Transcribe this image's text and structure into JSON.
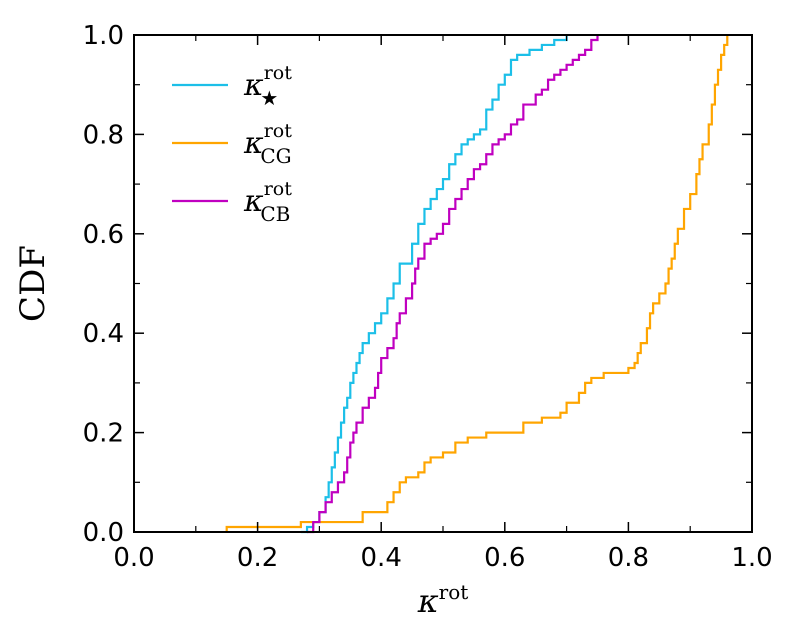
{
  "chart_data": {
    "type": "line",
    "title": "",
    "xlabel": {
      "base": "κ",
      "sup": "rot"
    },
    "ylabel": "CDF",
    "xlim": [
      0.0,
      1.0
    ],
    "ylim": [
      0.0,
      1.0
    ],
    "x_ticks": [
      "0.0",
      "0.2",
      "0.4",
      "0.6",
      "0.8",
      "1.0"
    ],
    "y_ticks": [
      "0.0",
      "0.2",
      "0.4",
      "0.6",
      "0.8",
      "1.0"
    ],
    "grid": false,
    "legend_position": "upper-left",
    "series": [
      {
        "name": "κ★rot",
        "label": {
          "base": "κ",
          "sup": "rot",
          "sub": "★"
        },
        "color": "#1cbfe8",
        "step": true,
        "points": [
          [
            0.27,
            0.0
          ],
          [
            0.28,
            0.01
          ],
          [
            0.29,
            0.02
          ],
          [
            0.3,
            0.04
          ],
          [
            0.31,
            0.07
          ],
          [
            0.315,
            0.1
          ],
          [
            0.32,
            0.13
          ],
          [
            0.325,
            0.16
          ],
          [
            0.33,
            0.19
          ],
          [
            0.335,
            0.22
          ],
          [
            0.34,
            0.25
          ],
          [
            0.345,
            0.27
          ],
          [
            0.35,
            0.3
          ],
          [
            0.355,
            0.32
          ],
          [
            0.36,
            0.34
          ],
          [
            0.365,
            0.36
          ],
          [
            0.37,
            0.38
          ],
          [
            0.38,
            0.4
          ],
          [
            0.39,
            0.42
          ],
          [
            0.4,
            0.44
          ],
          [
            0.41,
            0.47
          ],
          [
            0.42,
            0.5
          ],
          [
            0.43,
            0.54
          ],
          [
            0.44,
            0.54
          ],
          [
            0.45,
            0.58
          ],
          [
            0.46,
            0.62
          ],
          [
            0.47,
            0.65
          ],
          [
            0.48,
            0.67
          ],
          [
            0.49,
            0.69
          ],
          [
            0.5,
            0.71
          ],
          [
            0.51,
            0.74
          ],
          [
            0.52,
            0.76
          ],
          [
            0.53,
            0.78
          ],
          [
            0.54,
            0.79
          ],
          [
            0.55,
            0.8
          ],
          [
            0.56,
            0.81
          ],
          [
            0.57,
            0.85
          ],
          [
            0.58,
            0.87
          ],
          [
            0.59,
            0.9
          ],
          [
            0.6,
            0.92
          ],
          [
            0.61,
            0.95
          ],
          [
            0.62,
            0.96
          ],
          [
            0.64,
            0.97
          ],
          [
            0.66,
            0.98
          ],
          [
            0.68,
            0.99
          ],
          [
            0.7,
            1.0
          ]
        ]
      },
      {
        "name": "κCGrot",
        "label": {
          "base": "κ",
          "sup": "rot",
          "sub": "CG"
        },
        "color": "#ffa500",
        "step": true,
        "points": [
          [
            0.15,
            0.0
          ],
          [
            0.15,
            0.01
          ],
          [
            0.27,
            0.01
          ],
          [
            0.27,
            0.02
          ],
          [
            0.35,
            0.02
          ],
          [
            0.37,
            0.04
          ],
          [
            0.4,
            0.04
          ],
          [
            0.41,
            0.06
          ],
          [
            0.42,
            0.08
          ],
          [
            0.43,
            0.1
          ],
          [
            0.44,
            0.11
          ],
          [
            0.46,
            0.12
          ],
          [
            0.47,
            0.14
          ],
          [
            0.48,
            0.15
          ],
          [
            0.5,
            0.16
          ],
          [
            0.52,
            0.18
          ],
          [
            0.54,
            0.19
          ],
          [
            0.57,
            0.2
          ],
          [
            0.62,
            0.2
          ],
          [
            0.63,
            0.22
          ],
          [
            0.66,
            0.23
          ],
          [
            0.69,
            0.24
          ],
          [
            0.7,
            0.26
          ],
          [
            0.72,
            0.28
          ],
          [
            0.73,
            0.3
          ],
          [
            0.74,
            0.31
          ],
          [
            0.76,
            0.32
          ],
          [
            0.8,
            0.33
          ],
          [
            0.81,
            0.34
          ],
          [
            0.815,
            0.36
          ],
          [
            0.82,
            0.38
          ],
          [
            0.83,
            0.41
          ],
          [
            0.835,
            0.44
          ],
          [
            0.84,
            0.46
          ],
          [
            0.85,
            0.48
          ],
          [
            0.86,
            0.5
          ],
          [
            0.865,
            0.53
          ],
          [
            0.87,
            0.55
          ],
          [
            0.875,
            0.58
          ],
          [
            0.88,
            0.61
          ],
          [
            0.89,
            0.65
          ],
          [
            0.9,
            0.68
          ],
          [
            0.91,
            0.72
          ],
          [
            0.915,
            0.75
          ],
          [
            0.92,
            0.78
          ],
          [
            0.93,
            0.82
          ],
          [
            0.935,
            0.86
          ],
          [
            0.94,
            0.9
          ],
          [
            0.945,
            0.93
          ],
          [
            0.95,
            0.96
          ],
          [
            0.955,
            0.98
          ],
          [
            0.96,
            1.0
          ]
        ]
      },
      {
        "name": "κCBrot",
        "label": {
          "base": "κ",
          "sup": "rot",
          "sub": "CB"
        },
        "color": "#c000c0",
        "step": true,
        "points": [
          [
            0.28,
            0.0
          ],
          [
            0.29,
            0.02
          ],
          [
            0.3,
            0.04
          ],
          [
            0.31,
            0.06
          ],
          [
            0.32,
            0.08
          ],
          [
            0.33,
            0.1
          ],
          [
            0.34,
            0.12
          ],
          [
            0.345,
            0.15
          ],
          [
            0.35,
            0.18
          ],
          [
            0.355,
            0.2
          ],
          [
            0.36,
            0.22
          ],
          [
            0.37,
            0.25
          ],
          [
            0.38,
            0.27
          ],
          [
            0.39,
            0.29
          ],
          [
            0.395,
            0.32
          ],
          [
            0.4,
            0.35
          ],
          [
            0.41,
            0.37
          ],
          [
            0.42,
            0.39
          ],
          [
            0.425,
            0.42
          ],
          [
            0.43,
            0.44
          ],
          [
            0.44,
            0.47
          ],
          [
            0.45,
            0.5
          ],
          [
            0.455,
            0.53
          ],
          [
            0.46,
            0.55
          ],
          [
            0.47,
            0.58
          ],
          [
            0.48,
            0.59
          ],
          [
            0.49,
            0.6
          ],
          [
            0.5,
            0.62
          ],
          [
            0.51,
            0.65
          ],
          [
            0.52,
            0.67
          ],
          [
            0.53,
            0.69
          ],
          [
            0.54,
            0.71
          ],
          [
            0.55,
            0.73
          ],
          [
            0.56,
            0.74
          ],
          [
            0.57,
            0.76
          ],
          [
            0.58,
            0.78
          ],
          [
            0.59,
            0.79
          ],
          [
            0.6,
            0.8
          ],
          [
            0.61,
            0.82
          ],
          [
            0.62,
            0.83
          ],
          [
            0.63,
            0.86
          ],
          [
            0.64,
            0.86
          ],
          [
            0.65,
            0.88
          ],
          [
            0.66,
            0.89
          ],
          [
            0.67,
            0.91
          ],
          [
            0.68,
            0.92
          ],
          [
            0.69,
            0.93
          ],
          [
            0.7,
            0.94
          ],
          [
            0.71,
            0.95
          ],
          [
            0.72,
            0.96
          ],
          [
            0.73,
            0.97
          ],
          [
            0.74,
            0.99
          ],
          [
            0.75,
            1.0
          ]
        ]
      }
    ]
  }
}
